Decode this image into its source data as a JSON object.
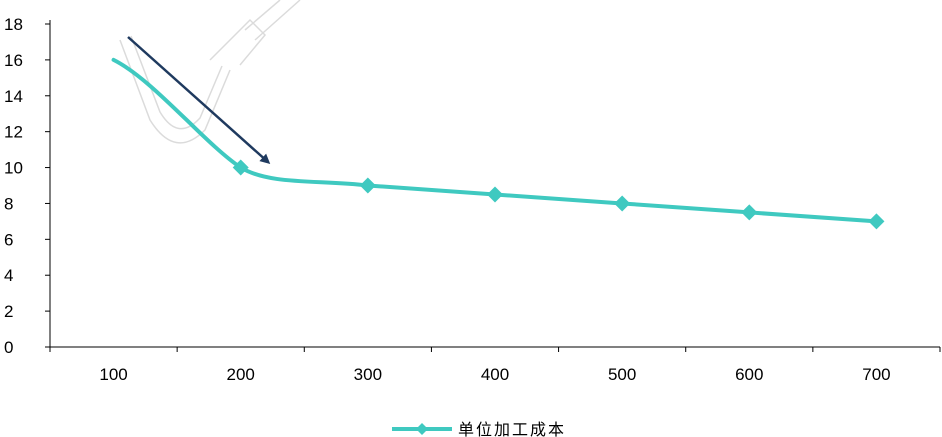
{
  "chart_data": {
    "type": "line",
    "title": "",
    "xlabel": "",
    "ylabel": "",
    "categories": [
      "100",
      "200",
      "300",
      "400",
      "500",
      "600",
      "700"
    ],
    "series": [
      {
        "name": "单位加工成本",
        "values": [
          16,
          10,
          9,
          8.5,
          8,
          7.5,
          7
        ],
        "color": "#3FC9C0"
      }
    ],
    "ylim": [
      0,
      18
    ],
    "yticks": [
      0,
      2,
      4,
      6,
      8,
      10,
      12,
      14,
      16,
      18
    ],
    "grid": false,
    "legend": "bottom-center",
    "annotations": [
      {
        "type": "arrow",
        "direction": "down-right",
        "color": "#1F3A5F"
      }
    ]
  }
}
